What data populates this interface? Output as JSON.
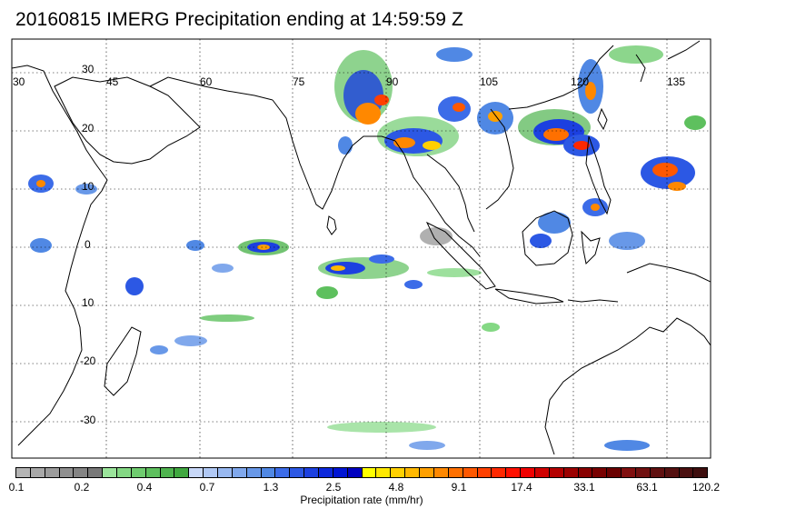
{
  "title": "20160815 IMERG Precipitation ending at 14:59:59 Z",
  "map": {
    "projection": "equirectangular",
    "lon_range": [
      30,
      142
    ],
    "lat_range": [
      -38,
      35
    ],
    "gridlines": "dotted",
    "lon_labels": [
      "30",
      "45",
      "60",
      "75",
      "90",
      "105",
      "120",
      "135"
    ],
    "lat_labels": [
      "30",
      "20",
      "10",
      "0",
      "10",
      "-20",
      "-30"
    ]
  },
  "colorbar": {
    "title": "Precipitation rate (mm/hr)",
    "labels": [
      "0.1",
      "0.2",
      "0.4",
      "0.7",
      "1.3",
      "2.5",
      "4.8",
      "9.1",
      "17.4",
      "33.1",
      "63.1",
      "120.2"
    ],
    "colors": [
      "#b4b4b4",
      "#a8a8a8",
      "#9c9c9c",
      "#909090",
      "#848484",
      "#787878",
      "#9be49b",
      "#84d884",
      "#6fcc6f",
      "#5ec05e",
      "#4fb44f",
      "#40a840",
      "#c8d8f8",
      "#b0c8f4",
      "#98b8f0",
      "#80a8ec",
      "#6898e8",
      "#5088e4",
      "#3c6ce8",
      "#2c58e4",
      "#1c40e0",
      "#0c28dc",
      "#0014d4",
      "#0000c0",
      "#ffff00",
      "#ffe800",
      "#ffd000",
      "#ffb800",
      "#ffa000",
      "#ff8800",
      "#ff7000",
      "#ff5800",
      "#ff4000",
      "#ff2800",
      "#ff1000",
      "#f00000",
      "#d00000",
      "#b40000",
      "#9c0000",
      "#880000",
      "#780000",
      "#6a0000",
      "#800f0f",
      "#701010",
      "#601010",
      "#541010",
      "#4a1010",
      "#3e0e0e"
    ]
  }
}
